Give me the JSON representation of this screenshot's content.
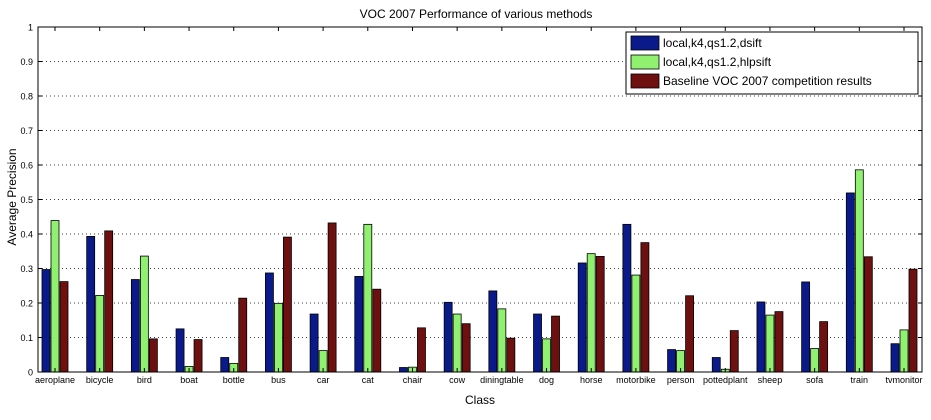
{
  "chart_data": {
    "type": "bar",
    "title": "VOC 2007 Performance of various methods",
    "xlabel": "Class",
    "ylabel": "Average Precision",
    "ylim": [
      0,
      1
    ],
    "yticks": [
      "0",
      "0.1",
      "0.2",
      "0.3",
      "0.4",
      "0.5",
      "0.6",
      "0.7",
      "0.8",
      "0.9",
      "1"
    ],
    "grid": "dotted horizontal",
    "legend_position": "top-right",
    "categories": [
      "aeroplane",
      "bicycle",
      "bird",
      "boat",
      "bottle",
      "bus",
      "car",
      "cat",
      "chair",
      "cow",
      "diningtable",
      "dog",
      "horse",
      "motorbike",
      "person",
      "pottedplant",
      "sheep",
      "sofa",
      "train",
      "tvmonitor"
    ],
    "series": [
      {
        "name": "local,k4,qs1.2,dsift",
        "color": "#0a1a8a",
        "values": [
          0.297,
          0.393,
          0.268,
          0.125,
          0.042,
          0.287,
          0.168,
          0.277,
          0.013,
          0.202,
          0.235,
          0.168,
          0.316,
          0.428,
          0.065,
          0.042,
          0.203,
          0.261,
          0.519,
          0.082
        ]
      },
      {
        "name": "local,k4,qs1.2,hlpsift",
        "color": "#90f070",
        "values": [
          0.439,
          0.222,
          0.336,
          0.016,
          0.025,
          0.199,
          0.062,
          0.428,
          0.014,
          0.168,
          0.183,
          0.096,
          0.343,
          0.281,
          0.062,
          0.008,
          0.165,
          0.068,
          0.586,
          0.122
        ]
      },
      {
        "name": "Baseline VOC 2007 competition results",
        "color": "#6e1010",
        "values": [
          0.262,
          0.409,
          0.096,
          0.094,
          0.214,
          0.391,
          0.432,
          0.24,
          0.128,
          0.14,
          0.098,
          0.162,
          0.335,
          0.375,
          0.221,
          0.12,
          0.175,
          0.146,
          0.334,
          0.298
        ]
      }
    ]
  }
}
